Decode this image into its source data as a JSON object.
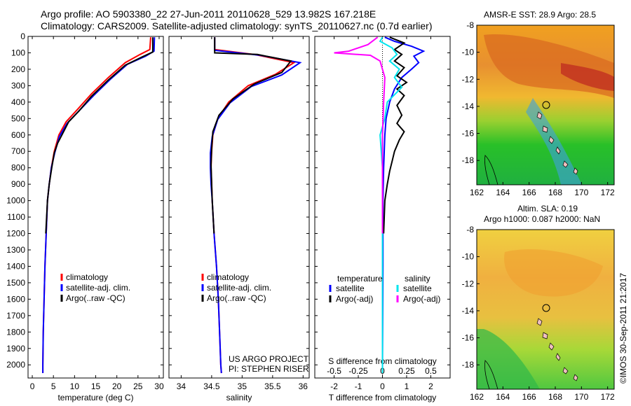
{
  "header": {
    "line1": "Argo profile: AO 5903380_22 27-Jun-2011 20110628_529 13.982S 167.218E",
    "line2": "Climatology: CARS2009. Satellite-adjusted climatology: synTS_20110627.nc (0.7d earlier)"
  },
  "side_stamp": "©IMOS 30-Sep-2011 21:2017",
  "credits": [
    "US ARGO PROJECT",
    "PI: STEPHEN RISER"
  ],
  "colors": {
    "climatology": "#ff0000",
    "satellite": "#0000ff",
    "argo": "#000000",
    "satellite_salinity": "#00e5ee",
    "argo_salinity": "#ff00ff"
  },
  "map_top_title": "AMSR-E SST: 28.9 Argo: 28.5",
  "map_bottom_title": [
    "Altim. SLA: 0.19",
    "Argo h1000: 0.087 h2000: NaN"
  ],
  "chart_data": [
    {
      "type": "line",
      "panel": "temperature",
      "xlabel": "temperature (deg C)",
      "ylabel": "",
      "xlim": [
        -1,
        31
      ],
      "ylim": [
        2080,
        0
      ],
      "xticks": [
        0,
        5,
        10,
        15,
        20,
        25,
        30
      ],
      "yticks": [
        0,
        100,
        200,
        300,
        400,
        500,
        600,
        700,
        800,
        900,
        1000,
        1100,
        1200,
        1300,
        1400,
        1500,
        1600,
        1700,
        1800,
        1900,
        2000
      ],
      "legend": [
        "climatology",
        "satellite-adj. clim.",
        "Argo(..raw -QC)"
      ],
      "series": [
        {
          "name": "climatology",
          "color": "#ff0000",
          "points": [
            [
              28.0,
              5
            ],
            [
              27.8,
              80
            ],
            [
              25.5,
              110
            ],
            [
              22,
              160
            ],
            [
              18,
              250
            ],
            [
              14,
              350
            ],
            [
              10.5,
              450
            ],
            [
              8,
              520
            ],
            [
              6.3,
              600
            ],
            [
              5.2,
              700
            ],
            [
              4.5,
              800
            ],
            [
              4.0,
              900
            ],
            [
              3.6,
              1000
            ],
            [
              3.3,
              1200
            ],
            [
              3.0,
              1400
            ],
            [
              2.8,
              1600
            ],
            [
              2.6,
              1800
            ],
            [
              2.5,
              2000
            ],
            [
              2.5,
              2050
            ]
          ]
        },
        {
          "name": "satellite-adj. clim.",
          "color": "#0000ff",
          "points": [
            [
              28.9,
              5
            ],
            [
              28.8,
              90
            ],
            [
              26.8,
              120
            ],
            [
              22.5,
              170
            ],
            [
              18.5,
              260
            ],
            [
              14.5,
              360
            ],
            [
              10.8,
              460
            ],
            [
              8.2,
              530
            ],
            [
              6.4,
              610
            ],
            [
              5.3,
              710
            ],
            [
              4.5,
              800
            ],
            [
              4.0,
              900
            ],
            [
              3.6,
              1000
            ],
            [
              3.3,
              1200
            ],
            [
              3.0,
              1400
            ],
            [
              2.8,
              1600
            ],
            [
              2.6,
              1800
            ],
            [
              2.5,
              2000
            ],
            [
              2.5,
              2050
            ]
          ]
        },
        {
          "name": "Argo(..raw -QC)",
          "color": "#000000",
          "points": [
            [
              28.5,
              5
            ],
            [
              28.5,
              95
            ],
            [
              26,
              125
            ],
            [
              22,
              175
            ],
            [
              18,
              265
            ],
            [
              14,
              365
            ],
            [
              11,
              455
            ],
            [
              8.6,
              520
            ],
            [
              7.0,
              600
            ],
            [
              6.0,
              650
            ],
            [
              5.2,
              710
            ],
            [
              4.6,
              800
            ],
            [
              4.0,
              900
            ],
            [
              3.6,
              1000
            ],
            [
              3.2,
              1200
            ]
          ]
        }
      ]
    },
    {
      "type": "line",
      "panel": "salinity",
      "xlabel": "salinity",
      "ylabel": "",
      "xlim": [
        33.8,
        36.1
      ],
      "ylim": [
        2080,
        0
      ],
      "xticks": [
        34,
        34.5,
        35,
        35.5,
        36
      ],
      "legend": [
        "climatology",
        "satellite-adj. clim.",
        "Argo(..raw -QC)"
      ],
      "series": [
        {
          "name": "climatology",
          "color": "#ff0000",
          "points": [
            [
              34.55,
              5
            ],
            [
              34.55,
              80
            ],
            [
              35.2,
              110
            ],
            [
              35.85,
              160
            ],
            [
              35.55,
              230
            ],
            [
              35.1,
              300
            ],
            [
              34.78,
              400
            ],
            [
              34.6,
              500
            ],
            [
              34.52,
              600
            ],
            [
              34.5,
              700
            ],
            [
              34.49,
              800
            ],
            [
              34.5,
              900
            ],
            [
              34.51,
              1000
            ],
            [
              34.54,
              1200
            ],
            [
              34.58,
              1400
            ],
            [
              34.61,
              1600
            ],
            [
              34.63,
              1800
            ],
            [
              34.65,
              2000
            ],
            [
              34.66,
              2050
            ]
          ]
        },
        {
          "name": "satellite-adj. clim.",
          "color": "#0000ff",
          "points": [
            [
              34.55,
              5
            ],
            [
              34.55,
              85
            ],
            [
              35.3,
              115
            ],
            [
              35.95,
              160
            ],
            [
              35.65,
              235
            ],
            [
              35.15,
              305
            ],
            [
              34.8,
              405
            ],
            [
              34.6,
              505
            ],
            [
              34.51,
              610
            ],
            [
              34.48,
              710
            ],
            [
              34.48,
              800
            ],
            [
              34.49,
              900
            ],
            [
              34.51,
              1000
            ],
            [
              34.54,
              1200
            ],
            [
              34.58,
              1400
            ],
            [
              34.61,
              1600
            ],
            [
              34.63,
              1800
            ],
            [
              34.65,
              2000
            ],
            [
              34.66,
              2050
            ]
          ]
        },
        {
          "name": "Argo(..raw -QC)",
          "color": "#000000",
          "points": [
            [
              34.55,
              5
            ],
            [
              34.55,
              100
            ],
            [
              35.25,
              110
            ],
            [
              35.8,
              150
            ],
            [
              35.65,
              220
            ],
            [
              35.2,
              290
            ],
            [
              34.85,
              380
            ],
            [
              34.62,
              480
            ],
            [
              34.52,
              580
            ],
            [
              34.5,
              680
            ],
            [
              34.49,
              780
            ],
            [
              34.5,
              900
            ],
            [
              34.51,
              1000
            ],
            [
              34.54,
              1200
            ]
          ]
        }
      ]
    },
    {
      "type": "line",
      "panel": "difference",
      "xlabel": "T difference from climatology",
      "xlabel_top": "S difference from climatology",
      "xlim": [
        -2.8,
        2.8
      ],
      "ylim": [
        2080,
        0
      ],
      "xticks": [
        -2,
        -1,
        0,
        1,
        2
      ],
      "xticks_salinity": [
        -0.5,
        -0.25,
        0,
        0.25,
        0.5
      ],
      "legend_headers": [
        "temperature",
        "salinity"
      ],
      "legend": [
        "satellite",
        "Argo(-adj)",
        "satellite",
        "Argo(-adj)"
      ],
      "series": [
        {
          "name": "satellite",
          "color": "#0000ff",
          "points": [
            [
              0.1,
              5
            ],
            [
              0.5,
              30
            ],
            [
              1.2,
              60
            ],
            [
              1.7,
              90
            ],
            [
              1.3,
              120
            ],
            [
              1.5,
              160
            ],
            [
              1.2,
              200
            ],
            [
              0.8,
              250
            ],
            [
              0.5,
              320
            ],
            [
              0.3,
              400
            ],
            [
              0.15,
              500
            ],
            [
              0.1,
              600
            ],
            [
              0.05,
              800
            ],
            [
              0.02,
              1000
            ],
            [
              0.02,
              1400
            ],
            [
              0,
              2050
            ]
          ]
        },
        {
          "name": "Argo(-adj)",
          "color": "#000000",
          "points": [
            [
              0.3,
              5
            ],
            [
              0.9,
              40
            ],
            [
              0.5,
              80
            ],
            [
              0.8,
              110
            ],
            [
              0.5,
              150
            ],
            [
              0.9,
              190
            ],
            [
              0.6,
              240
            ],
            [
              1.0,
              280
            ],
            [
              0.6,
              320
            ],
            [
              0.9,
              360
            ],
            [
              0.6,
              420
            ],
            [
              0.8,
              480
            ],
            [
              0.6,
              530
            ],
            [
              0.9,
              580
            ],
            [
              0.7,
              630
            ],
            [
              0.5,
              700
            ],
            [
              0.4,
              760
            ],
            [
              0.3,
              820
            ],
            [
              0.2,
              900
            ],
            [
              0.1,
              1000
            ],
            [
              0.05,
              1200
            ]
          ]
        },
        {
          "name": "satellite",
          "color": "#00e5ee",
          "points": [
            [
              0,
              5
            ],
            [
              -0.1,
              30
            ],
            [
              0.4,
              70
            ],
            [
              0.6,
              110
            ],
            [
              0.3,
              150
            ],
            [
              0.7,
              200
            ],
            [
              0.5,
              250
            ],
            [
              0.8,
              310
            ],
            [
              0.2,
              400
            ],
            [
              0.1,
              500
            ],
            [
              -0.1,
              600
            ],
            [
              0,
              800
            ],
            [
              0,
              1200
            ],
            [
              0,
              2050
            ]
          ]
        },
        {
          "name": "Argo(-adj)",
          "color": "#ff00ff",
          "points": [
            [
              -0.2,
              5
            ],
            [
              -0.6,
              50
            ],
            [
              -1.4,
              90
            ],
            [
              -2.0,
              100
            ],
            [
              -0.5,
              115
            ],
            [
              -0.1,
              150
            ],
            [
              0.1,
              250
            ],
            [
              0.05,
              400
            ],
            [
              0,
              600
            ],
            [
              0,
              900
            ],
            [
              0,
              1200
            ]
          ]
        }
      ]
    }
  ],
  "maps": {
    "xticks": [
      162,
      164,
      166,
      168,
      170,
      172
    ],
    "yticks": [
      -8,
      -10,
      -12,
      -14,
      -16,
      -18
    ]
  }
}
